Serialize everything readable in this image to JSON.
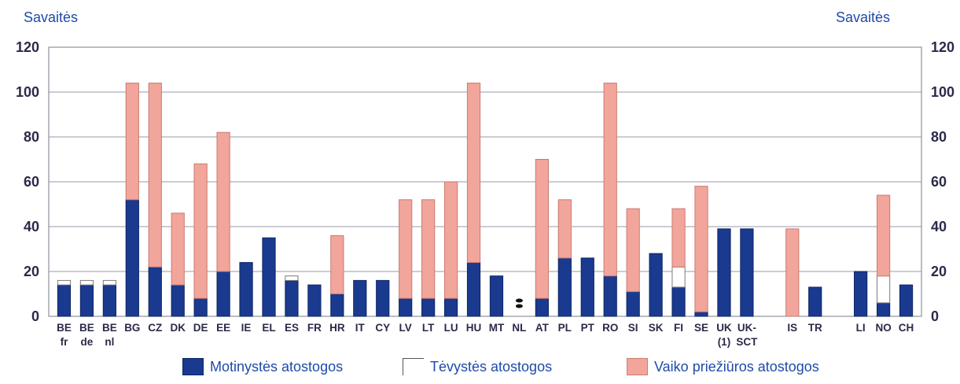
{
  "chart_data": {
    "type": "bar",
    "stacked": true,
    "y_unit_label_left": "Savaitės",
    "y_unit_label_right": "Savaitės",
    "ylim": [
      0,
      120
    ],
    "yticks": [
      "0",
      "20",
      "40",
      "60",
      "80",
      "100",
      "120"
    ],
    "grid": true,
    "legend_position": "bottom",
    "categories": [
      {
        "label": [
          "BE",
          "fr"
        ],
        "maternity": 14,
        "paternity": 2,
        "parental": 0
      },
      {
        "label": [
          "BE",
          "de"
        ],
        "maternity": 14,
        "paternity": 2,
        "parental": 0
      },
      {
        "label": [
          "BE",
          "nl"
        ],
        "maternity": 14,
        "paternity": 2,
        "parental": 0
      },
      {
        "label": [
          "BG"
        ],
        "maternity": 52,
        "paternity": 0,
        "parental": 52
      },
      {
        "label": [
          "CZ"
        ],
        "maternity": 22,
        "paternity": 0,
        "parental": 82
      },
      {
        "label": [
          "DK"
        ],
        "maternity": 14,
        "paternity": 0,
        "parental": 32
      },
      {
        "label": [
          "DE"
        ],
        "maternity": 8,
        "paternity": 0,
        "parental": 60
      },
      {
        "label": [
          "EE"
        ],
        "maternity": 20,
        "paternity": 0,
        "parental": 62
      },
      {
        "label": [
          "IE"
        ],
        "maternity": 24,
        "paternity": 0,
        "parental": 0
      },
      {
        "label": [
          "EL"
        ],
        "maternity": 35,
        "paternity": 0,
        "parental": 0
      },
      {
        "label": [
          "ES"
        ],
        "maternity": 16,
        "paternity": 2,
        "parental": 0
      },
      {
        "label": [
          "FR"
        ],
        "maternity": 14,
        "paternity": 0,
        "parental": 0
      },
      {
        "label": [
          "HR"
        ],
        "maternity": 10,
        "paternity": 0,
        "parental": 26
      },
      {
        "label": [
          "IT"
        ],
        "maternity": 16,
        "paternity": 0,
        "parental": 0
      },
      {
        "label": [
          "CY"
        ],
        "maternity": 16,
        "paternity": 0,
        "parental": 0
      },
      {
        "label": [
          "LV"
        ],
        "maternity": 8,
        "paternity": 0,
        "parental": 44
      },
      {
        "label": [
          "LT"
        ],
        "maternity": 8,
        "paternity": 0,
        "parental": 44
      },
      {
        "label": [
          "LU"
        ],
        "maternity": 8,
        "paternity": 0,
        "parental": 52
      },
      {
        "label": [
          "HU"
        ],
        "maternity": 24,
        "paternity": 0,
        "parental": 80
      },
      {
        "label": [
          "MT"
        ],
        "maternity": 18,
        "paternity": 0,
        "parental": 0
      },
      {
        "label": [
          "NL"
        ],
        "maternity": 0,
        "paternity": 0,
        "parental": 0,
        "special": "colon"
      },
      {
        "label": [
          "AT"
        ],
        "maternity": 8,
        "paternity": 0,
        "parental": 62
      },
      {
        "label": [
          "PL"
        ],
        "maternity": 26,
        "paternity": 0,
        "parental": 26
      },
      {
        "label": [
          "PT"
        ],
        "maternity": 26,
        "paternity": 0,
        "parental": 0
      },
      {
        "label": [
          "RO"
        ],
        "maternity": 18,
        "paternity": 0,
        "parental": 86
      },
      {
        "label": [
          "SI"
        ],
        "maternity": 11,
        "paternity": 0,
        "parental": 37
      },
      {
        "label": [
          "SK"
        ],
        "maternity": 28,
        "paternity": 0,
        "parental": 0
      },
      {
        "label": [
          "FI"
        ],
        "maternity": 13,
        "paternity": 9,
        "parental": 26
      },
      {
        "label": [
          "SE"
        ],
        "maternity": 2,
        "paternity": 0,
        "parental": 56
      },
      {
        "label": [
          "UK",
          "(1)"
        ],
        "maternity": 39,
        "paternity": 0,
        "parental": 0
      },
      {
        "label": [
          "UK-",
          "SCT"
        ],
        "maternity": 39,
        "paternity": 0,
        "parental": 0
      },
      {
        "label": [
          "IS"
        ],
        "maternity": 0,
        "paternity": 0,
        "parental": 39,
        "gap_before": true
      },
      {
        "label": [
          "TR"
        ],
        "maternity": 13,
        "paternity": 0,
        "parental": 0
      },
      {
        "label": [
          "LI"
        ],
        "maternity": 20,
        "paternity": 0,
        "parental": 0,
        "gap_before": true
      },
      {
        "label": [
          "NO"
        ],
        "maternity": 6,
        "paternity": 12,
        "parental": 36
      },
      {
        "label": [
          "CH"
        ],
        "maternity": 14,
        "paternity": 0,
        "parental": 0
      }
    ],
    "series": [
      {
        "key": "maternity",
        "name": "Motinystės atostogos",
        "color": "#1a3a8f"
      },
      {
        "key": "paternity",
        "name": "Tėvystės atostogos",
        "color": "#ffffff"
      },
      {
        "key": "parental",
        "name": "Vaiko priežiūros atostogos",
        "color": "#f2a59b"
      }
    ]
  }
}
